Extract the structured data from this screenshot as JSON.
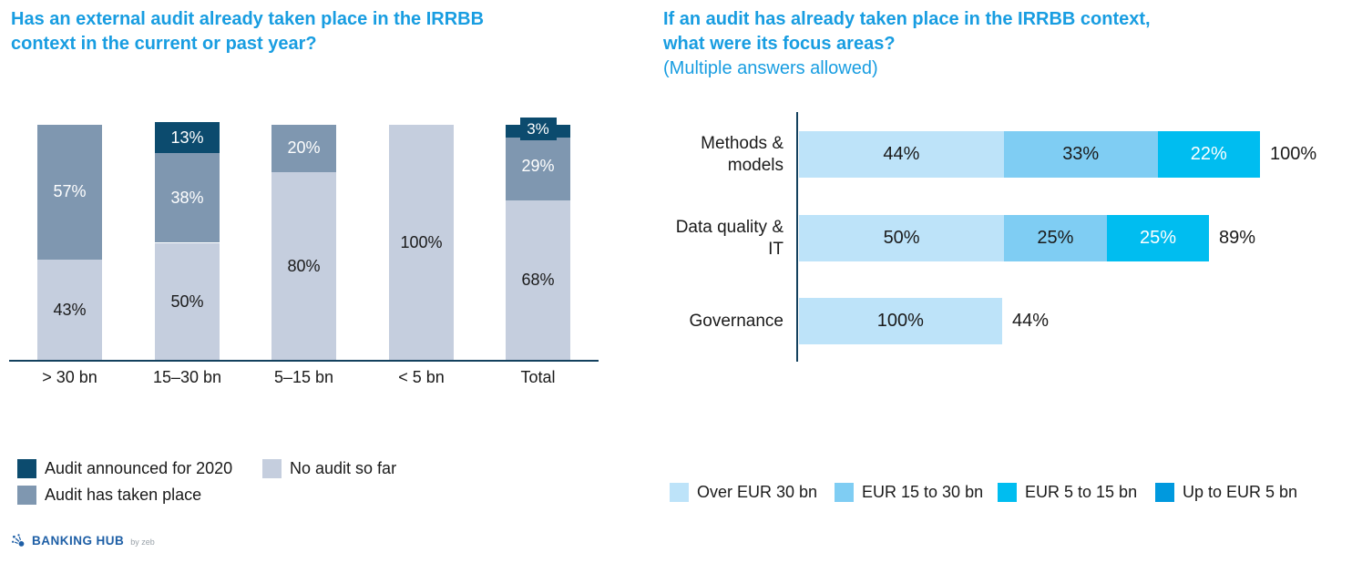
{
  "colors": {
    "title": "#189DE1",
    "text": "#1a1a1a",
    "white": "#ffffff",
    "axis": "#14415E",
    "palette": {
      "light": "#C5CEDE",
      "medium": "#7F97B0",
      "dark": "#0C4B6E",
      "c1": "#BDE3F9",
      "c2": "#7FCDF3",
      "c3": "#00BDF0",
      "c4": "#0099DE"
    },
    "logo_blue": "#1E5FA6",
    "logo_gray": "#99A1A8"
  },
  "left_chart": {
    "title_lines": [
      "Has an external audit already taken place in the IRRBB",
      "context in the current or past year?"
    ],
    "bars": [
      {
        "category": "> 30 bn",
        "segments": [
          {
            "value": 43,
            "label": "43%",
            "color": "light",
            "text_color": "text"
          },
          {
            "value": 57,
            "label": "57%",
            "color": "medium",
            "text_color": "white"
          }
        ]
      },
      {
        "category": "15–30 bn",
        "segments": [
          {
            "value": 50,
            "label": "50%",
            "color": "light",
            "text_color": "text"
          },
          {
            "value": 38,
            "label": "38%",
            "color": "medium",
            "text_color": "white"
          },
          {
            "value": 13,
            "label": "13%",
            "color": "dark",
            "text_color": "white"
          }
        ]
      },
      {
        "category": "5–15 bn",
        "segments": [
          {
            "value": 80,
            "label": "80%",
            "color": "light",
            "text_color": "text"
          },
          {
            "value": 20,
            "label": "20%",
            "color": "medium",
            "text_color": "white"
          }
        ]
      },
      {
        "category": "< 5 bn",
        "segments": [
          {
            "value": 100,
            "label": "100%",
            "color": "light",
            "text_color": "text"
          }
        ]
      },
      {
        "category": "Total",
        "segments": [
          {
            "value": 68,
            "label": "68%",
            "color": "light",
            "text_color": "text"
          },
          {
            "value": 29,
            "label": "29%",
            "color": "medium",
            "text_color": "white"
          },
          {
            "value": 3,
            "label": "3%",
            "color": "dark",
            "text_color": "white",
            "callout": true
          }
        ]
      }
    ],
    "legend": [
      {
        "label": "Audit announced for 2020",
        "color": "dark"
      },
      {
        "label": "No audit so far",
        "color": "light"
      },
      {
        "label": "Audit has taken place",
        "color": "medium"
      }
    ]
  },
  "right_chart": {
    "title_lines": [
      "If an audit has already taken place in the IRRBB context,",
      "what were its focus areas?"
    ],
    "subtitle": "(Multiple answers allowed)",
    "bars": [
      {
        "category_lines": [
          "Methods &",
          "models"
        ],
        "overall": 100,
        "total_label": "100%",
        "segments": [
          {
            "value": 44,
            "label": "44%",
            "color": "c1",
            "text_color": "text"
          },
          {
            "value": 33,
            "label": "33%",
            "color": "c2",
            "text_color": "text"
          },
          {
            "value": 22,
            "label": "22%",
            "color": "c3",
            "text_color": "white"
          }
        ]
      },
      {
        "category_lines": [
          "Data quality &",
          "IT"
        ],
        "overall": 89,
        "total_label": "89%",
        "segments": [
          {
            "value": 50,
            "label": "50%",
            "color": "c1",
            "text_color": "text"
          },
          {
            "value": 25,
            "label": "25%",
            "color": "c2",
            "text_color": "text"
          },
          {
            "value": 25,
            "label": "25%",
            "color": "c3",
            "text_color": "white"
          }
        ]
      },
      {
        "category_lines": [
          "Governance"
        ],
        "overall": 44,
        "total_label": "44%",
        "segments": [
          {
            "value": 100,
            "label": "100%",
            "color": "c1",
            "text_color": "text"
          }
        ]
      }
    ],
    "legend": [
      {
        "label": "Over EUR 30 bn",
        "color": "c1"
      },
      {
        "label": "EUR 15 to 30 bn",
        "color": "c2"
      },
      {
        "label": "EUR 5 to 15 bn",
        "color": "c3"
      },
      {
        "label": "Up to EUR 5 bn",
        "color": "c4"
      }
    ]
  },
  "footer": {
    "brand_1": "BANKING",
    "brand_2": "HUB",
    "byline": "by zeb"
  },
  "chart_data": [
    {
      "type": "bar",
      "orientation": "vertical-stacked",
      "title": "Has an external audit already taken place in the IRRBB context in the current or past year?",
      "categories": [
        "> 30 bn",
        "15–30 bn",
        "5–15 bn",
        "< 5 bn",
        "Total"
      ],
      "series": [
        {
          "name": "No audit so far",
          "values": [
            43,
            50,
            80,
            100,
            68
          ]
        },
        {
          "name": "Audit has taken place",
          "values": [
            57,
            38,
            20,
            0,
            29
          ]
        },
        {
          "name": "Audit announced for 2020",
          "values": [
            0,
            13,
            0,
            0,
            3
          ]
        }
      ],
      "unit": "%",
      "ylim": [
        0,
        100
      ],
      "grid": false,
      "legend_position": "bottom-left"
    },
    {
      "type": "bar",
      "orientation": "horizontal-stacked",
      "title": "If an audit has already taken place in the IRRBB context, what were its focus areas?",
      "subtitle": "(Multiple answers allowed)",
      "categories": [
        "Methods & models",
        "Data quality & IT",
        "Governance"
      ],
      "series": [
        {
          "name": "Over EUR 30 bn",
          "values": [
            44,
            50,
            100
          ]
        },
        {
          "name": "EUR 15 to 30 bn",
          "values": [
            33,
            25,
            0
          ]
        },
        {
          "name": "EUR 5 to 15 bn",
          "values": [
            22,
            25,
            0
          ]
        },
        {
          "name": "Up to EUR 5 bn",
          "values": [
            0,
            0,
            0
          ]
        }
      ],
      "row_totals": [
        "100%",
        "89%",
        "44%"
      ],
      "unit": "%",
      "grid": false,
      "legend_position": "bottom-right"
    }
  ]
}
